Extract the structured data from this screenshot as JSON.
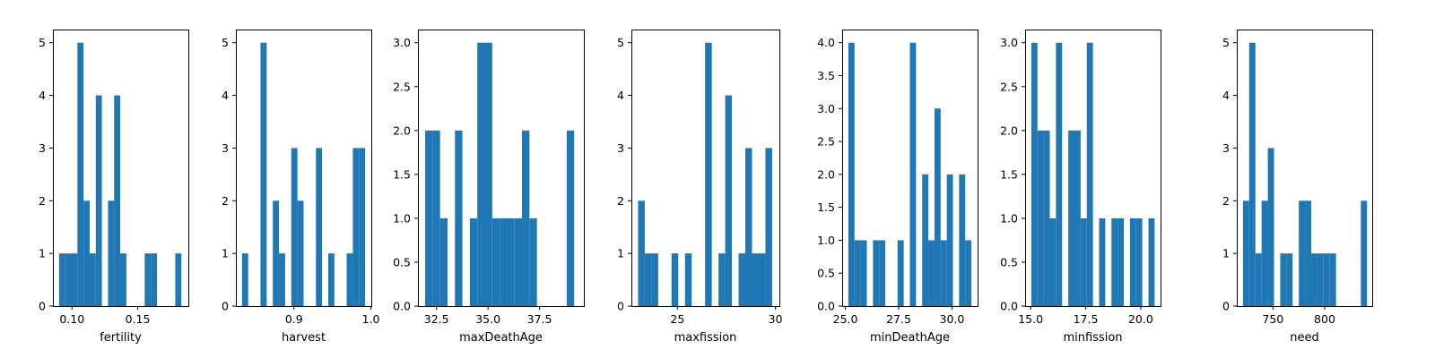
{
  "colors": {
    "bar": "#1f77b4",
    "axis": "#000000",
    "background": "#ffffff"
  },
  "chart_data": [
    {
      "type": "bar",
      "subtype": "histogram",
      "xlabel": "fertility",
      "ylabel": "",
      "xlim": [
        0.0855,
        0.1885
      ],
      "ylim": [
        0,
        5.25
      ],
      "x_ticks": [
        {
          "v": 0.1,
          "label": "0.10"
        },
        {
          "v": 0.15,
          "label": "0.15"
        }
      ],
      "y_ticks": [
        {
          "v": 0,
          "label": "0"
        },
        {
          "v": 1,
          "label": "1"
        },
        {
          "v": 2,
          "label": "2"
        },
        {
          "v": 3,
          "label": "3"
        },
        {
          "v": 4,
          "label": "4"
        },
        {
          "v": 5,
          "label": "5"
        }
      ],
      "bin_start": 0.0902,
      "bin_width": 0.00465,
      "values": [
        1,
        1,
        1,
        5,
        2,
        1,
        4,
        0,
        2,
        4,
        1,
        0,
        0,
        0,
        1,
        1,
        0,
        0,
        0,
        1
      ]
    },
    {
      "type": "bar",
      "subtype": "histogram",
      "xlabel": "harvest",
      "ylabel": "",
      "xlim": [
        0.8245,
        1.0005
      ],
      "ylim": [
        0,
        5.25
      ],
      "x_ticks": [
        {
          "v": 0.9,
          "label": "0.9"
        },
        {
          "v": 1.0,
          "label": "1.0"
        }
      ],
      "y_ticks": [
        {
          "v": 0,
          "label": "0"
        },
        {
          "v": 1,
          "label": "1"
        },
        {
          "v": 2,
          "label": "2"
        },
        {
          "v": 3,
          "label": "3"
        },
        {
          "v": 4,
          "label": "4"
        },
        {
          "v": 5,
          "label": "5"
        }
      ],
      "bin_start": 0.8325,
      "bin_width": 0.008,
      "values": [
        1,
        0,
        0,
        5,
        0,
        2,
        1,
        0,
        3,
        2,
        0,
        0,
        3,
        0,
        1,
        0,
        0,
        1,
        3,
        3
      ]
    },
    {
      "type": "bar",
      "subtype": "histogram",
      "xlabel": "maxDeathAge",
      "ylabel": "",
      "xlim": [
        31.6,
        39.65
      ],
      "ylim": [
        0,
        3.15
      ],
      "x_ticks": [
        {
          "v": 32.5,
          "label": "32.5"
        },
        {
          "v": 35.0,
          "label": "35.0"
        },
        {
          "v": 37.5,
          "label": "37.5"
        }
      ],
      "y_ticks": [
        {
          "v": 0,
          "label": "0.0"
        },
        {
          "v": 0.5,
          "label": "0.5"
        },
        {
          "v": 1.0,
          "label": "1.0"
        },
        {
          "v": 1.5,
          "label": "1.5"
        },
        {
          "v": 2.0,
          "label": "2.0"
        },
        {
          "v": 2.5,
          "label": "2.5"
        },
        {
          "v": 3.0,
          "label": "3.0"
        }
      ],
      "bin_start": 31.95,
      "bin_width": 0.3615,
      "values": [
        2,
        2,
        1,
        0,
        2,
        0,
        1,
        3,
        3,
        1,
        1,
        1,
        1,
        2,
        1,
        0,
        0,
        0,
        0,
        2
      ]
    },
    {
      "type": "bar",
      "subtype": "histogram",
      "xlabel": "maxfission",
      "ylabel": "",
      "xlim": [
        22.65,
        30.2
      ],
      "ylim": [
        0,
        5.25
      ],
      "x_ticks": [
        {
          "v": 25,
          "label": "25"
        },
        {
          "v": 30,
          "label": "30"
        }
      ],
      "y_ticks": [
        {
          "v": 0,
          "label": "0"
        },
        {
          "v": 1,
          "label": "1"
        },
        {
          "v": 2,
          "label": "2"
        },
        {
          "v": 3,
          "label": "3"
        },
        {
          "v": 4,
          "label": "4"
        },
        {
          "v": 5,
          "label": "5"
        }
      ],
      "bin_start": 22.99,
      "bin_width": 0.342,
      "values": [
        2,
        1,
        1,
        0,
        0,
        1,
        0,
        1,
        0,
        0,
        5,
        0,
        1,
        4,
        0,
        1,
        3,
        1,
        1,
        3
      ]
    },
    {
      "type": "bar",
      "subtype": "histogram",
      "xlabel": "minDeathAge",
      "ylabel": "",
      "xlim": [
        24.85,
        31.2
      ],
      "ylim": [
        0,
        4.2
      ],
      "x_ticks": [
        {
          "v": 25.0,
          "label": "25.0"
        },
        {
          "v": 27.5,
          "label": "27.5"
        },
        {
          "v": 30.0,
          "label": "30.0"
        }
      ],
      "y_ticks": [
        {
          "v": 0,
          "label": "0.0"
        },
        {
          "v": 0.5,
          "label": "0.5"
        },
        {
          "v": 1.0,
          "label": "1.0"
        },
        {
          "v": 1.5,
          "label": "1.5"
        },
        {
          "v": 2.0,
          "label": "2.0"
        },
        {
          "v": 2.5,
          "label": "2.5"
        },
        {
          "v": 3.0,
          "label": "3.0"
        },
        {
          "v": 3.5,
          "label": "3.5"
        },
        {
          "v": 4.0,
          "label": "4.0"
        }
      ],
      "bin_start": 25.14,
      "bin_width": 0.2885,
      "values": [
        4,
        1,
        1,
        0,
        1,
        1,
        0,
        0,
        1,
        0,
        4,
        0,
        2,
        1,
        3,
        1,
        2,
        0,
        2,
        1
      ]
    },
    {
      "type": "bar",
      "subtype": "histogram",
      "xlabel": "minfission",
      "ylabel": "",
      "xlim": [
        14.75,
        20.9
      ],
      "ylim": [
        0,
        3.15
      ],
      "x_ticks": [
        {
          "v": 15.0,
          "label": "15.0"
        },
        {
          "v": 17.5,
          "label": "17.5"
        },
        {
          "v": 20.0,
          "label": "20.0"
        }
      ],
      "y_ticks": [
        {
          "v": 0,
          "label": "0.0"
        },
        {
          "v": 0.5,
          "label": "0.5"
        },
        {
          "v": 1.0,
          "label": "1.0"
        },
        {
          "v": 1.5,
          "label": "1.5"
        },
        {
          "v": 2.0,
          "label": "2.0"
        },
        {
          "v": 2.5,
          "label": "2.5"
        },
        {
          "v": 3.0,
          "label": "3.0"
        }
      ],
      "bin_start": 15.03,
      "bin_width": 0.28,
      "values": [
        3,
        2,
        2,
        1,
        3,
        0,
        2,
        2,
        1,
        3,
        0,
        1,
        0,
        1,
        1,
        0,
        1,
        1,
        0,
        1
      ]
    },
    {
      "type": "bar",
      "subtype": "histogram",
      "xlabel": "need",
      "ylabel": "",
      "xlim": [
        715.0,
        846.0
      ],
      "ylim": [
        0,
        5.25
      ],
      "x_ticks": [
        {
          "v": 750,
          "label": "750"
        },
        {
          "v": 800,
          "label": "800"
        }
      ],
      "y_ticks": [
        {
          "v": 0,
          "label": "0"
        },
        {
          "v": 1,
          "label": "1"
        },
        {
          "v": 2,
          "label": "2"
        },
        {
          "v": 3,
          "label": "3"
        },
        {
          "v": 4,
          "label": "4"
        },
        {
          "v": 5,
          "label": "5"
        }
      ],
      "bin_start": 721.0,
      "bin_width": 6.0,
      "values": [
        2,
        5,
        1,
        2,
        3,
        0,
        1,
        1,
        0,
        2,
        2,
        1,
        1,
        1,
        1,
        0,
        0,
        0,
        0,
        2
      ]
    }
  ]
}
